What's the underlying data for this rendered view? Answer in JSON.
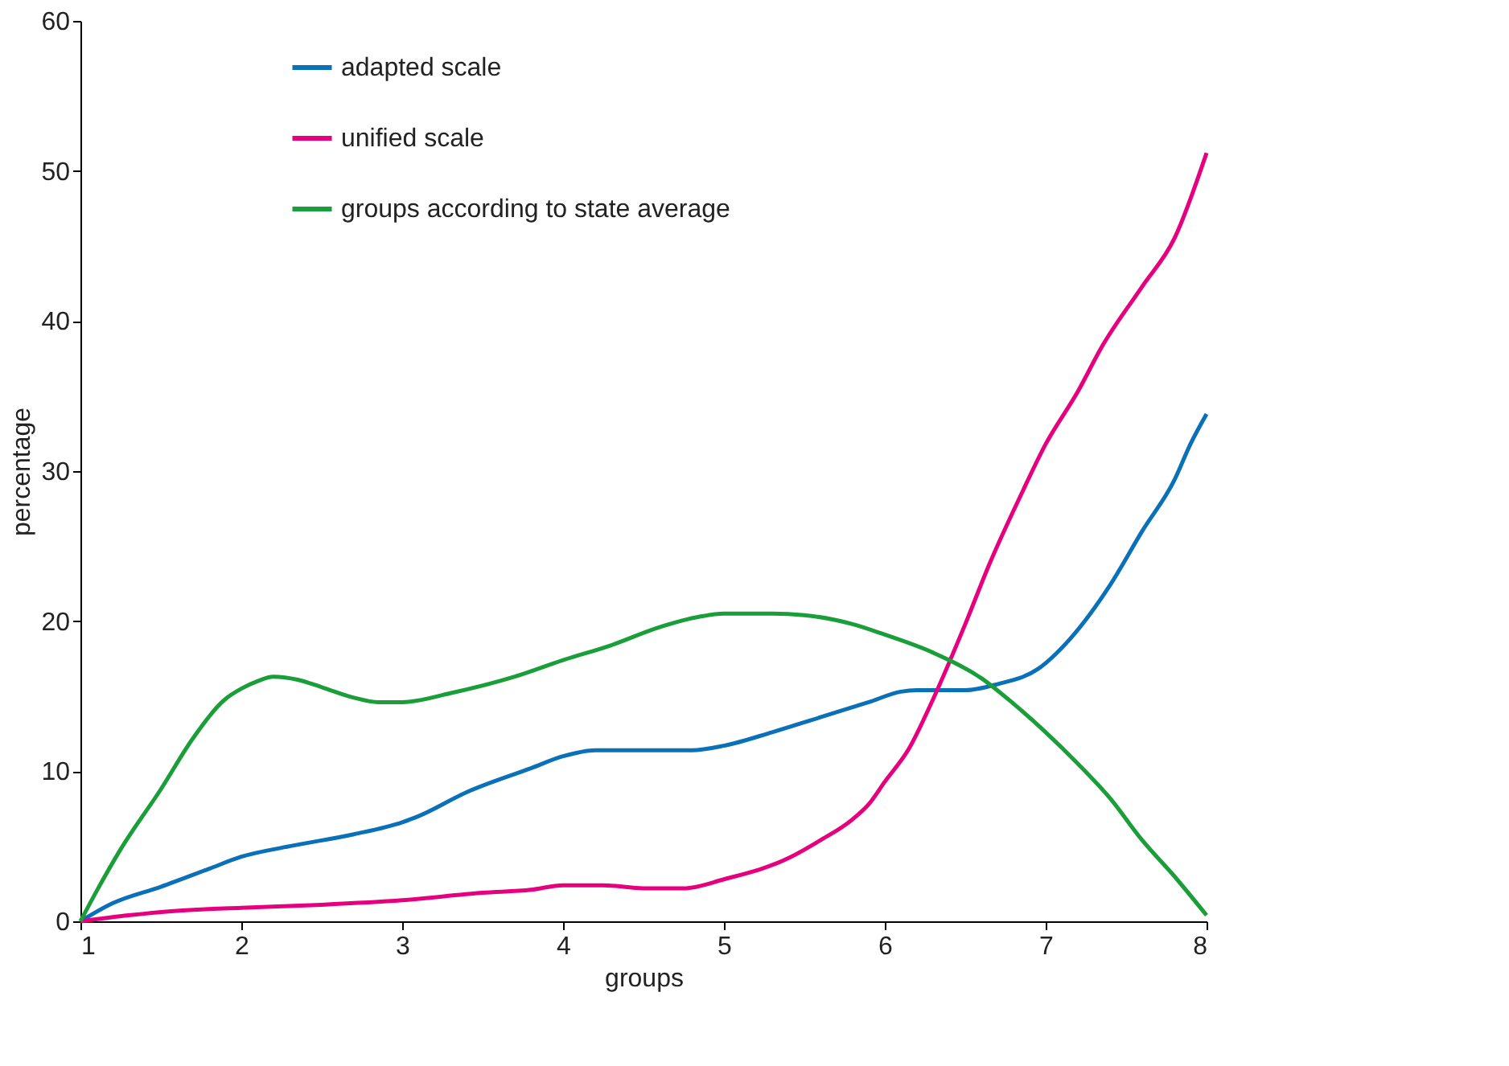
{
  "chart_data": {
    "type": "line",
    "xlabel": "groups",
    "ylabel": "percentage",
    "xlim": [
      1,
      8
    ],
    "xticks": [
      1,
      2,
      3,
      4,
      5,
      6,
      7,
      8
    ],
    "ylim": [
      0,
      60
    ],
    "yticks": [
      0,
      10,
      20,
      30,
      40,
      50,
      60
    ],
    "grid": false,
    "legend": "top left",
    "marker": "none",
    "line_style": "solid",
    "series": [
      {
        "name": "adapted scale",
        "color": "#0a70b8",
        "x": [
          1,
          1.2,
          1.5,
          1.8,
          2,
          2.3,
          2.7,
          3,
          3.1,
          3.4,
          3.8,
          4,
          4.2,
          4.5,
          4.8,
          5,
          5.3,
          5.6,
          5.9,
          6.1,
          6.2,
          6.5,
          6.7,
          6.95,
          7.15,
          7.4,
          7.6,
          7.8,
          7.9,
          8
        ],
        "values": [
          0,
          1.2,
          2.3,
          3.5,
          4.3,
          5,
          5.8,
          6.6,
          7,
          8.6,
          10.2,
          11,
          11.4,
          11.4,
          11.4,
          11.7,
          12.6,
          13.6,
          14.6,
          15.3,
          15.4,
          15.4,
          15.8,
          16.8,
          18.8,
          22.4,
          26,
          29.4,
          31.8,
          33.8
        ]
      },
      {
        "name": "unified scale",
        "color": "#e6007e",
        "x": [
          1,
          1.3,
          1.6,
          2,
          2.5,
          3,
          3.5,
          3.8,
          4,
          4.25,
          4.5,
          4.75,
          5,
          5.4,
          5.6,
          5.8,
          5.9,
          6,
          6.15,
          6.3,
          6.5,
          6.65,
          6.85,
          7,
          7.2,
          7.35,
          7.6,
          7.8,
          8
        ],
        "values": [
          0,
          0.4,
          0.7,
          0.9,
          1.1,
          1.4,
          1.9,
          2.1,
          2.4,
          2.4,
          2.2,
          2.2,
          2.8,
          4.2,
          5.4,
          6.8,
          7.8,
          9.3,
          11.5,
          14.8,
          19.8,
          23.8,
          28.5,
          31.8,
          35.3,
          38.3,
          42.3,
          45.5,
          51.2
        ]
      },
      {
        "name": "groups according to state average",
        "color": "#1a9e3a",
        "x": [
          1,
          1.1,
          1.25,
          1.5,
          1.7,
          1.9,
          2,
          2.1,
          2.2,
          2.35,
          2.5,
          2.7,
          2.85,
          3,
          3.3,
          3.7,
          4,
          4.3,
          4.6,
          4.85,
          5,
          5.3,
          5.5,
          5.8,
          6,
          6.3,
          6.6,
          6.8,
          7,
          7.2,
          7.4,
          7.6,
          7.8,
          8
        ],
        "values": [
          0,
          2,
          4.8,
          8.8,
          12.2,
          14.8,
          15.5,
          16,
          16.3,
          16.1,
          15.6,
          14.9,
          14.6,
          14.6,
          15.2,
          16.3,
          17.4,
          18.4,
          19.6,
          20.3,
          20.5,
          20.5,
          20.4,
          19.8,
          19.1,
          17.9,
          16.2,
          14.5,
          12.6,
          10.5,
          8.2,
          5.4,
          3,
          0.4
        ]
      }
    ]
  }
}
